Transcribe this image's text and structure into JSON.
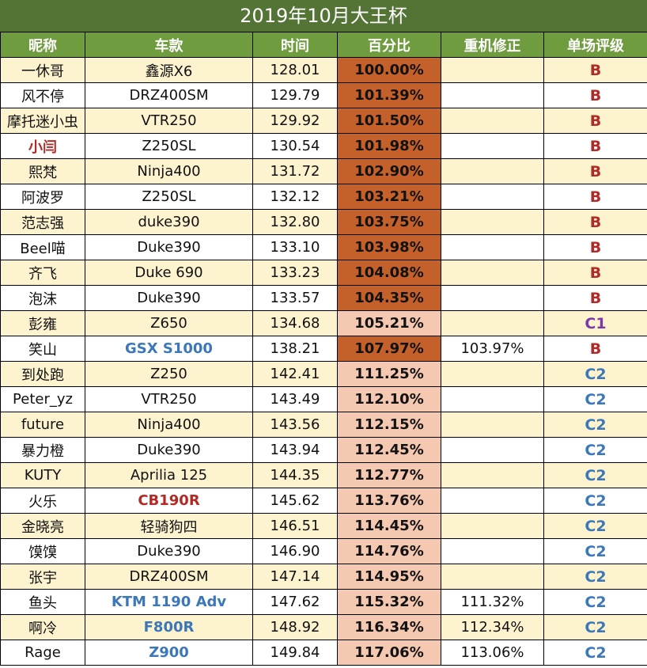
{
  "title": "2019年10月大王杯",
  "headers": [
    "昵称",
    "车款",
    "时间",
    "百分比",
    "重机修正",
    "单场评级"
  ],
  "colors": {
    "title_bg": "#547436",
    "header_bg": "#6f9c3e",
    "row_odd": "#fef3cf",
    "pct_dark": "#c4612a",
    "pct_light": "#f5c8b2",
    "red": "#b22a26",
    "blue": "#3c78b9",
    "purple": "#7a3aa8"
  },
  "rows": [
    {
      "name": "一休哥",
      "bike": "鑫源X6",
      "time": "128.01",
      "pct": "100.00%",
      "corr": "",
      "grade": "B",
      "pct_shade": "dark",
      "grade_color": "red"
    },
    {
      "name": "风不停",
      "bike": "DRZ400SM",
      "time": "129.79",
      "pct": "101.39%",
      "corr": "",
      "grade": "B",
      "pct_shade": "dark",
      "grade_color": "red"
    },
    {
      "name": "摩托迷小虫",
      "bike": "VTR250",
      "time": "129.92",
      "pct": "101.50%",
      "corr": "",
      "grade": "B",
      "pct_shade": "dark",
      "grade_color": "red"
    },
    {
      "name": "小闫",
      "bike": "Z250SL",
      "time": "130.54",
      "pct": "101.98%",
      "corr": "",
      "grade": "B",
      "pct_shade": "dark",
      "grade_color": "red",
      "name_color": "red"
    },
    {
      "name": "熙梵",
      "bike": "Ninja400",
      "time": "131.72",
      "pct": "102.90%",
      "corr": "",
      "grade": "B",
      "pct_shade": "dark",
      "grade_color": "red"
    },
    {
      "name": "阿波罗",
      "bike": "Z250SL",
      "time": "132.12",
      "pct": "103.21%",
      "corr": "",
      "grade": "B",
      "pct_shade": "dark",
      "grade_color": "red"
    },
    {
      "name": "范志强",
      "bike": "duke390",
      "time": "132.80",
      "pct": "103.75%",
      "corr": "",
      "grade": "B",
      "pct_shade": "dark",
      "grade_color": "red"
    },
    {
      "name": "Beel喵",
      "bike": "Duke390",
      "time": "133.10",
      "pct": "103.98%",
      "corr": "",
      "grade": "B",
      "pct_shade": "dark",
      "grade_color": "red"
    },
    {
      "name": "齐飞",
      "bike": "Duke 690",
      "time": "133.23",
      "pct": "104.08%",
      "corr": "",
      "grade": "B",
      "pct_shade": "dark",
      "grade_color": "red"
    },
    {
      "name": "泡沫",
      "bike": "Duke390",
      "time": "133.57",
      "pct": "104.35%",
      "corr": "",
      "grade": "B",
      "pct_shade": "dark",
      "grade_color": "red"
    },
    {
      "name": "彭雍",
      "bike": "Z650",
      "time": "134.68",
      "pct": "105.21%",
      "corr": "",
      "grade": "C1",
      "pct_shade": "light",
      "grade_color": "purple"
    },
    {
      "name": "笑山",
      "bike": "GSX S1000",
      "time": "138.21",
      "pct": "107.97%",
      "corr": "103.97%",
      "grade": "B",
      "pct_shade": "dark",
      "grade_color": "red",
      "bike_color": "blue"
    },
    {
      "name": "到处跑",
      "bike": "Z250",
      "time": "142.41",
      "pct": "111.25%",
      "corr": "",
      "grade": "C2",
      "pct_shade": "light",
      "grade_color": "blue"
    },
    {
      "name": "Peter_yz",
      "bike": "VTR250",
      "time": "143.49",
      "pct": "112.10%",
      "corr": "",
      "grade": "C2",
      "pct_shade": "light",
      "grade_color": "blue"
    },
    {
      "name": "future",
      "bike": "Ninja400",
      "time": "143.56",
      "pct": "112.15%",
      "corr": "",
      "grade": "C2",
      "pct_shade": "light",
      "grade_color": "blue"
    },
    {
      "name": "暴力橙",
      "bike": "Duke390",
      "time": "143.94",
      "pct": "112.45%",
      "corr": "",
      "grade": "C2",
      "pct_shade": "light",
      "grade_color": "blue"
    },
    {
      "name": "KUTY",
      "bike": "Aprilia 125",
      "time": "144.35",
      "pct": "112.77%",
      "corr": "",
      "grade": "C2",
      "pct_shade": "light",
      "grade_color": "blue"
    },
    {
      "name": "火乐",
      "bike": "CB190R",
      "time": "145.62",
      "pct": "113.76%",
      "corr": "",
      "grade": "C2",
      "pct_shade": "light",
      "grade_color": "blue",
      "bike_color": "red"
    },
    {
      "name": "金晓亮",
      "bike": "轻骑狗四",
      "time": "146.51",
      "pct": "114.45%",
      "corr": "",
      "grade": "C2",
      "pct_shade": "light",
      "grade_color": "blue"
    },
    {
      "name": "馍馍",
      "bike": "Duke390",
      "time": "146.90",
      "pct": "114.76%",
      "corr": "",
      "grade": "C2",
      "pct_shade": "light",
      "grade_color": "blue"
    },
    {
      "name": "张宇",
      "bike": "DRZ400SM",
      "time": "147.14",
      "pct": "114.95%",
      "corr": "",
      "grade": "C2",
      "pct_shade": "light",
      "grade_color": "blue"
    },
    {
      "name": "鱼头",
      "bike": "KTM 1190 Adv",
      "time": "147.62",
      "pct": "115.32%",
      "corr": "111.32%",
      "grade": "C2",
      "pct_shade": "light",
      "grade_color": "blue",
      "bike_color": "blue"
    },
    {
      "name": "啊冷",
      "bike": "F800R",
      "time": "148.92",
      "pct": "116.34%",
      "corr": "112.34%",
      "grade": "C2",
      "pct_shade": "light",
      "grade_color": "blue",
      "bike_color": "blue"
    },
    {
      "name": "Rage",
      "bike": "Z900",
      "time": "149.84",
      "pct": "117.06%",
      "corr": "113.06%",
      "grade": "C2",
      "pct_shade": "light",
      "grade_color": "blue",
      "bike_color": "blue"
    }
  ]
}
